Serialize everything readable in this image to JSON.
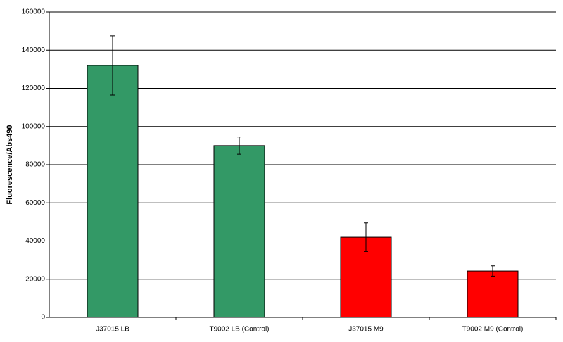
{
  "chart_data": {
    "type": "bar",
    "y_label": "Fluorescence/Abs490",
    "categories": [
      "J37015 LB",
      "T9002 LB (Control)",
      "J37015 M9",
      "T9002 M9 (Control)"
    ],
    "values": [
      132000,
      90000,
      42000,
      24300
    ],
    "errors": [
      15500,
      4500,
      7500,
      2700
    ],
    "colors": [
      "#339966",
      "#339966",
      "#ff0000",
      "#ff0000"
    ],
    "ylim": [
      0,
      160000
    ],
    "yticks": [
      0,
      20000,
      40000,
      60000,
      80000,
      100000,
      120000,
      140000,
      160000
    ],
    "grid": true
  }
}
